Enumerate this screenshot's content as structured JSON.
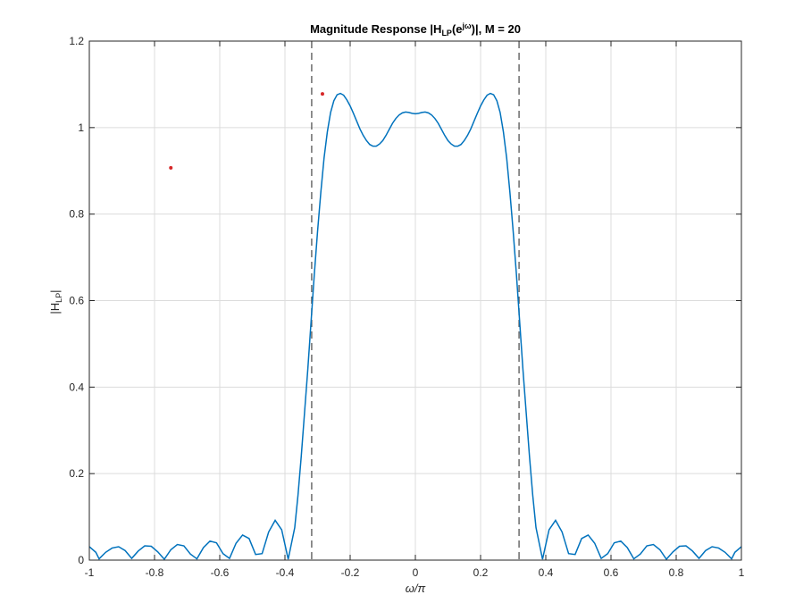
{
  "chart_data": {
    "type": "line",
    "title": {
      "prefix": "Magnitude  Response  |H",
      "sub": "LP",
      "mid1": "(e",
      "sup": "jω",
      "mid2": ")|,  M  =  20"
    },
    "xlabel": "ω/π",
    "ylabel": {
      "prefix": "|H",
      "sub": "LP",
      "suffix": "|"
    },
    "xlim": [
      -1,
      1
    ],
    "ylim": [
      0,
      1.2
    ],
    "xticks": [
      -1,
      -0.8,
      -0.6,
      -0.4,
      -0.2,
      0,
      0.2,
      0.4,
      0.6,
      0.8,
      1
    ],
    "xtick_labels": [
      "-1",
      "-0.8",
      "-0.6",
      "-0.4",
      "-0.2",
      "0",
      "0.2",
      "0.4",
      "0.6",
      "0.8",
      "1"
    ],
    "yticks": [
      0,
      0.2,
      0.4,
      0.6,
      0.8,
      1,
      1.2
    ],
    "ytick_labels": [
      "0",
      "0.2",
      "0.4",
      "0.6",
      "0.8",
      "1",
      "1.2"
    ],
    "grid": true,
    "cutoff_lines": [
      -0.318,
      0.318
    ],
    "markers": [
      {
        "x": -0.75,
        "y": 0.907
      },
      {
        "x": -0.285,
        "y": 1.078
      }
    ],
    "series": [
      {
        "M": 20,
        "color": "#0072BD",
        "x": [
          -1.0,
          -0.98,
          -0.97,
          -0.95,
          -0.93,
          -0.91,
          -0.89,
          -0.87,
          -0.85,
          -0.83,
          -0.81,
          -0.79,
          -0.77,
          -0.75,
          -0.73,
          -0.71,
          -0.69,
          -0.67,
          -0.65,
          -0.63,
          -0.61,
          -0.59,
          -0.57,
          -0.55,
          -0.53,
          -0.51,
          -0.49,
          -0.47,
          -0.45,
          -0.43,
          -0.41,
          -0.39,
          -0.37,
          -0.36,
          -0.35,
          -0.34,
          -0.33,
          -0.32,
          -0.31,
          -0.3,
          -0.29,
          -0.28,
          -0.27,
          -0.26,
          -0.25,
          -0.24,
          -0.23,
          -0.22,
          -0.21,
          -0.2,
          -0.19,
          -0.18,
          -0.17,
          -0.16,
          -0.15,
          -0.14,
          -0.13,
          -0.12,
          -0.11,
          -0.1,
          -0.09,
          -0.08,
          -0.07,
          -0.06,
          -0.05,
          -0.04,
          -0.03,
          -0.02,
          -0.01,
          0.0,
          0.01,
          0.02,
          0.03,
          0.04,
          0.05,
          0.06,
          0.07,
          0.08,
          0.09,
          0.1,
          0.11,
          0.12,
          0.13,
          0.14,
          0.15,
          0.16,
          0.17,
          0.18,
          0.19,
          0.2,
          0.21,
          0.22,
          0.23,
          0.24,
          0.25,
          0.26,
          0.27,
          0.28,
          0.29,
          0.3,
          0.31,
          0.32,
          0.33,
          0.34,
          0.35,
          0.36,
          0.37,
          0.39,
          0.41,
          0.43,
          0.45,
          0.47,
          0.49,
          0.51,
          0.53,
          0.55,
          0.57,
          0.59,
          0.61,
          0.63,
          0.65,
          0.67,
          0.69,
          0.71,
          0.73,
          0.75,
          0.77,
          0.79,
          0.81,
          0.83,
          0.85,
          0.87,
          0.89,
          0.91,
          0.93,
          0.95,
          0.97,
          0.98,
          1.0
        ],
        "y": [
          0.031,
          0.018,
          0.003,
          0.018,
          0.028,
          0.031,
          0.022,
          0.004,
          0.021,
          0.033,
          0.032,
          0.019,
          0.002,
          0.024,
          0.036,
          0.033,
          0.014,
          0.003,
          0.029,
          0.044,
          0.04,
          0.015,
          0.004,
          0.039,
          0.058,
          0.05,
          0.013,
          0.015,
          0.065,
          0.092,
          0.07,
          0.002,
          0.075,
          0.15,
          0.24,
          0.34,
          0.44,
          0.55,
          0.66,
          0.76,
          0.85,
          0.93,
          0.99,
          1.035,
          1.062,
          1.076,
          1.079,
          1.075,
          1.064,
          1.05,
          1.033,
          1.015,
          0.997,
          0.982,
          0.97,
          0.961,
          0.957,
          0.957,
          0.962,
          0.97,
          0.982,
          0.996,
          1.01,
          1.021,
          1.029,
          1.034,
          1.036,
          1.035,
          1.033,
          1.032,
          1.033,
          1.035,
          1.036,
          1.034,
          1.029,
          1.021,
          1.01,
          0.996,
          0.982,
          0.97,
          0.962,
          0.957,
          0.957,
          0.961,
          0.97,
          0.982,
          0.997,
          1.015,
          1.033,
          1.05,
          1.064,
          1.075,
          1.079,
          1.076,
          1.062,
          1.035,
          0.99,
          0.93,
          0.85,
          0.76,
          0.66,
          0.55,
          0.44,
          0.34,
          0.24,
          0.15,
          0.075,
          0.002,
          0.07,
          0.092,
          0.065,
          0.015,
          0.013,
          0.05,
          0.058,
          0.039,
          0.004,
          0.015,
          0.04,
          0.044,
          0.029,
          0.003,
          0.014,
          0.033,
          0.036,
          0.024,
          0.002,
          0.019,
          0.032,
          0.033,
          0.021,
          0.004,
          0.022,
          0.031,
          0.028,
          0.018,
          0.003,
          0.018,
          0.031
        ]
      }
    ]
  }
}
